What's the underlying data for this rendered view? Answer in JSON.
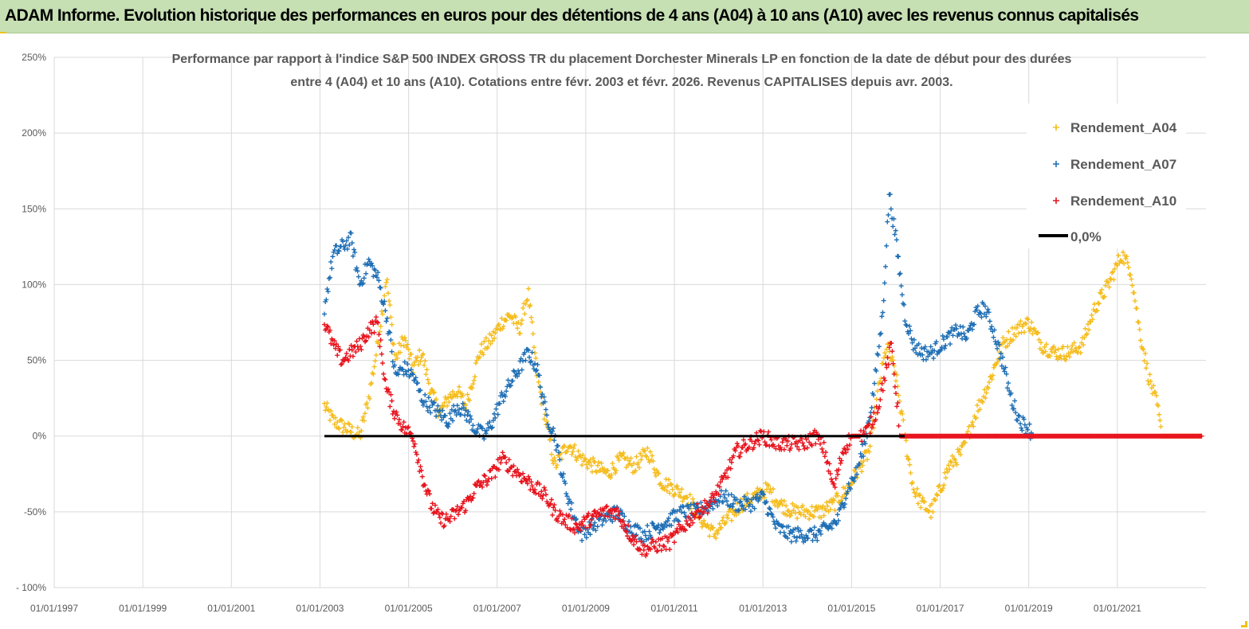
{
  "header": {
    "title": "ADAM Informe. Evolution historique des performances en euros pour des détentions de 4 ans (A04) à 10 ans (A10) avec les revenus connus capitalisés"
  },
  "chart_data": {
    "type": "scatter",
    "title_line1": "Performance par rapport à l'indice S&P 500 INDEX GROSS TR  du placement Dorchester Minerals LP en fonction de la date de début pour des durées",
    "title_line2": "entre 4 (A04) et 10 ans (A10). Cotations entre févr. 2003 et févr. 2026. Revenus CAPITALISES depuis avr. 2003.",
    "ylim": [
      -100,
      250
    ],
    "yticks": [
      250,
      200,
      150,
      100,
      50,
      0,
      -50,
      -100
    ],
    "ytick_labels": [
      "250%",
      "200%",
      "150%",
      "100%",
      "50%",
      "0%",
      "-50%",
      "- 100%"
    ],
    "xlim": [
      1997.0,
      2023.0
    ],
    "xticks": [
      1997,
      1999,
      2001,
      2003,
      2005,
      2007,
      2009,
      2011,
      2013,
      2015,
      2017,
      2019,
      2021
    ],
    "xtick_labels": [
      "01/01/1997",
      "01/01/1999",
      "01/01/2001",
      "01/01/2003",
      "01/01/2005",
      "01/01/2007",
      "01/01/2009",
      "01/01/2011",
      "01/01/2013",
      "01/01/2015",
      "01/01/2017",
      "01/01/2019",
      "01/01/2021"
    ],
    "legend": [
      "Rendement_A04",
      "Rendement_A07",
      "Rendement_A10",
      "0,0%"
    ],
    "legend_position": "top-right",
    "colors": {
      "a04": "#f5bd1f",
      "a07": "#1f6fb5",
      "a10": "#e8141e",
      "zero": "#000000"
    },
    "series": [
      {
        "name": "Rendement_A04",
        "color": "#f5bd1f",
        "x": [
          2003.1,
          2003.3,
          2003.6,
          2003.9,
          2004.1,
          2004.3,
          2004.5,
          2004.7,
          2004.9,
          2005.1,
          2005.3,
          2005.5,
          2005.7,
          2005.9,
          2006.1,
          2006.3,
          2006.6,
          2006.9,
          2007.1,
          2007.3,
          2007.5,
          2007.7,
          2007.9,
          2008.1,
          2008.3,
          2008.6,
          2008.9,
          2009.2,
          2009.5,
          2009.8,
          2010.1,
          2010.4,
          2010.7,
          2011.0,
          2011.3,
          2011.6,
          2011.9,
          2012.2,
          2012.5,
          2012.8,
          2013.1,
          2013.4,
          2013.7,
          2014.0,
          2014.3,
          2014.6,
          2014.9,
          2015.2,
          2015.4,
          2015.6,
          2015.8,
          2016.0,
          2016.2,
          2016.4,
          2016.6,
          2016.8,
          2017.0,
          2017.2,
          2017.5,
          2017.8,
          2018.1,
          2018.4,
          2018.7,
          2019.0,
          2019.3,
          2019.6,
          2019.9,
          2020.2,
          2020.5,
          2020.8,
          2021.1,
          2021.3,
          2021.5,
          2021.7,
          2021.9,
          2022.0,
          2022.3,
          2022.6,
          2022.9
        ],
        "y": [
          20,
          10,
          5,
          0,
          25,
          60,
          105,
          50,
          65,
          45,
          55,
          30,
          15,
          25,
          30,
          20,
          55,
          65,
          75,
          80,
          70,
          95,
          40,
          10,
          -20,
          -5,
          -15,
          -20,
          -25,
          -15,
          -20,
          -10,
          -30,
          -35,
          -40,
          -55,
          -65,
          -55,
          -45,
          -40,
          -35,
          -45,
          -50,
          -50,
          -50,
          -45,
          -35,
          -20,
          -10,
          30,
          60,
          40,
          0,
          -35,
          -45,
          -50,
          -35,
          -20,
          -10,
          15,
          35,
          60,
          70,
          75,
          60,
          55,
          55,
          60,
          85,
          100,
          120,
          110,
          70,
          40,
          20,
          0,
          0,
          0,
          0
        ]
      },
      {
        "name": "Rendement_A07",
        "color": "#1f6fb5",
        "x": [
          2003.1,
          2003.3,
          2003.5,
          2003.7,
          2003.9,
          2004.1,
          2004.3,
          2004.5,
          2004.7,
          2004.9,
          2005.1,
          2005.3,
          2005.5,
          2005.7,
          2005.9,
          2006.1,
          2006.3,
          2006.5,
          2006.7,
          2006.9,
          2007.1,
          2007.3,
          2007.5,
          2007.7,
          2007.9,
          2008.1,
          2008.3,
          2008.5,
          2008.7,
          2008.9,
          2009.1,
          2009.4,
          2009.7,
          2010.0,
          2010.3,
          2010.6,
          2010.9,
          2011.2,
          2011.5,
          2011.8,
          2012.1,
          2012.4,
          2012.7,
          2013.0,
          2013.3,
          2013.6,
          2013.9,
          2014.2,
          2014.5,
          2014.7,
          2014.9,
          2015.1,
          2015.3,
          2015.5,
          2015.7,
          2015.85,
          2016.0,
          2016.2,
          2016.4,
          2016.6,
          2016.8,
          2017.0,
          2017.2,
          2017.4,
          2017.6,
          2017.8,
          2018.0,
          2018.2,
          2018.4,
          2018.6,
          2018.8,
          2019.0,
          2019.1
        ],
        "y": [
          85,
          120,
          125,
          130,
          100,
          115,
          105,
          80,
          40,
          45,
          40,
          25,
          20,
          15,
          10,
          20,
          15,
          5,
          0,
          10,
          25,
          35,
          45,
          55,
          45,
          15,
          0,
          -30,
          -50,
          -65,
          -60,
          -55,
          -50,
          -60,
          -65,
          -60,
          -55,
          -50,
          -50,
          -45,
          -40,
          -45,
          -45,
          -40,
          -60,
          -65,
          -65,
          -65,
          -60,
          -55,
          -35,
          -25,
          -5,
          30,
          80,
          160,
          130,
          80,
          60,
          55,
          55,
          60,
          65,
          70,
          65,
          80,
          85,
          70,
          50,
          25,
          10,
          5,
          0
        ]
      },
      {
        "name": "Rendement_A10",
        "color": "#e8141e",
        "x": [
          2003.1,
          2003.3,
          2003.5,
          2003.7,
          2003.9,
          2004.1,
          2004.3,
          2004.5,
          2004.7,
          2004.9,
          2005.1,
          2005.3,
          2005.5,
          2005.7,
          2005.9,
          2006.1,
          2006.3,
          2006.5,
          2006.7,
          2006.9,
          2007.1,
          2007.3,
          2007.5,
          2007.7,
          2007.9,
          2008.1,
          2008.3,
          2008.5,
          2008.8,
          2009.1,
          2009.4,
          2009.7,
          2010.0,
          2010.3,
          2010.6,
          2010.9,
          2011.2,
          2011.5,
          2011.8,
          2012.1,
          2012.4,
          2012.7,
          2013.0,
          2013.3,
          2013.6,
          2013.9,
          2014.2,
          2014.4,
          2014.6,
          2014.8,
          2015.0,
          2015.2,
          2015.4,
          2015.6,
          2015.75,
          2015.9,
          2016.1,
          2016.5,
          2017.0,
          2017.5,
          2018.0,
          2018.5,
          2019.0,
          2019.5,
          2020.0,
          2020.5,
          2021.0,
          2021.5,
          2022.0,
          2022.5,
          2022.9
        ],
        "y": [
          75,
          60,
          50,
          55,
          60,
          70,
          75,
          30,
          15,
          5,
          0,
          -25,
          -45,
          -55,
          -55,
          -50,
          -45,
          -35,
          -30,
          -25,
          -15,
          -20,
          -25,
          -30,
          -35,
          -40,
          -50,
          -55,
          -60,
          -55,
          -50,
          -50,
          -65,
          -75,
          -72,
          -70,
          -60,
          -50,
          -45,
          -30,
          -10,
          -5,
          0,
          -5,
          -5,
          -5,
          0,
          -10,
          -35,
          -10,
          0,
          0,
          5,
          20,
          40,
          60,
          0,
          0,
          0,
          0,
          0,
          0,
          0,
          0,
          0,
          0,
          0,
          0,
          0,
          0,
          0
        ]
      },
      {
        "name": "0,0%",
        "color": "#000000",
        "x": [
          2003.1,
          2016.2
        ],
        "y": [
          0,
          0
        ]
      }
    ]
  }
}
